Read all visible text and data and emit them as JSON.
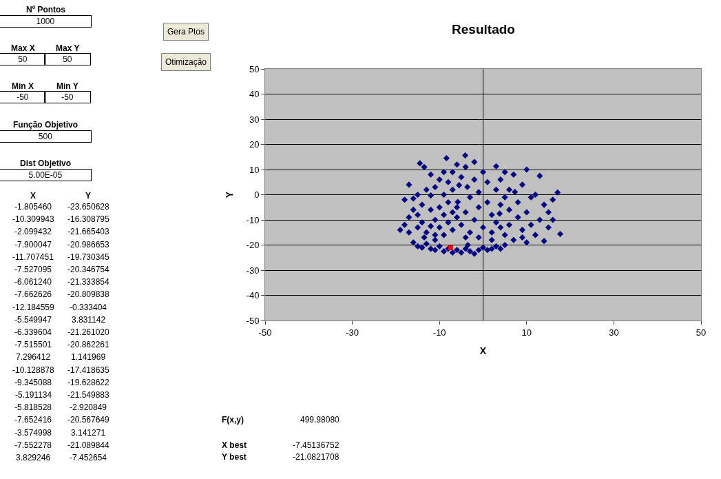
{
  "chart_data": {
    "type": "scatter",
    "title": "Resultado",
    "xlabel": "X",
    "ylabel": "Y",
    "xlim": [
      -50,
      50
    ],
    "xticks": [
      -50,
      -30,
      -10,
      10,
      30,
      50
    ],
    "ylim": [
      -50,
      50
    ],
    "yticks": [
      -50,
      -40,
      -30,
      -20,
      -10,
      0,
      10,
      20,
      30,
      40,
      50
    ],
    "grid": "y",
    "legend": false,
    "marker": "diamond",
    "series": [
      {
        "color": "#000080",
        "x": [
          -16,
          -15,
          -14,
          -13,
          -12,
          -11,
          -10,
          -9,
          -8,
          -6,
          -5,
          -4,
          -3,
          -2,
          -1,
          0,
          1,
          2,
          3,
          4,
          5,
          -7,
          -3.5,
          -11,
          -13.5,
          -19,
          -18,
          -17,
          -18,
          -16,
          -17,
          -15,
          -16,
          -15,
          -14,
          -14,
          -13,
          -13,
          -12,
          -12,
          -11,
          -11,
          -10,
          -10,
          -14.5,
          -13.5,
          -12,
          -17,
          -15,
          -11,
          -12,
          -9,
          -9,
          -9,
          -8.4,
          -8,
          -8,
          -8,
          -7,
          -7,
          -7,
          -6,
          -6,
          -5.5,
          -5.8,
          -5,
          -5,
          -4.1,
          -4,
          -4,
          -3.6,
          -3,
          -3,
          -2,
          -2,
          -2,
          -1,
          -1,
          0,
          0,
          -6,
          -9,
          -4,
          -1,
          -10,
          -7,
          1,
          1,
          2,
          2,
          3,
          3,
          3,
          4,
          4,
          5,
          5,
          5,
          6,
          6,
          7.3,
          7,
          7,
          8,
          8,
          9,
          9,
          9,
          10,
          10,
          11,
          11,
          12,
          12,
          13,
          13,
          14,
          14,
          15,
          15,
          16,
          16,
          17.1,
          17.7,
          3.8,
          6,
          10,
          2,
          4
        ],
        "values": [
          -19,
          -20.5,
          -21,
          -19.5,
          -21.5,
          -22,
          -20.5,
          -22.5,
          -21.5,
          -22,
          -23,
          -21.5,
          -22.5,
          -23.5,
          -22,
          -21,
          -22,
          -21.5,
          -20.5,
          -21.5,
          -20,
          -23,
          -20,
          -18,
          -17,
          -14,
          -12,
          -9,
          -2,
          -1.5,
          -15,
          -13,
          -6,
          -8,
          -4,
          -11,
          -15,
          2,
          -6,
          -0.3,
          -10,
          3,
          -13,
          6,
          12.5,
          11,
          8,
          4,
          0,
          -16,
          -12.5,
          -8,
          0,
          9,
          14.5,
          5,
          -3,
          -11,
          -14,
          2,
          9,
          -5,
          -9,
          3.8,
          -2.9,
          7,
          -12,
          15.6,
          11,
          -7,
          3.1,
          -1,
          -15,
          -10,
          6,
          13,
          1,
          -5,
          -13,
          9,
          12,
          -16,
          -17,
          -17,
          -5,
          -7,
          -3,
          5,
          -8,
          -15,
          11.3,
          2,
          -11,
          -4,
          6,
          -16,
          -1,
          9,
          -6,
          -12,
          1.1,
          -18,
          8,
          -9,
          -3,
          -14,
          4,
          -17,
          -7,
          10,
          -1,
          -12,
          -16,
          0,
          7.5,
          -10,
          -18.4,
          -4,
          -7,
          -13,
          -2,
          -10,
          0.9,
          -15.6,
          -7.5,
          2,
          -19,
          -18,
          -13
        ]
      },
      {
        "color": "#ff0000",
        "x": [
          -7.45136752
        ],
        "values": [
          -21.0821708
        ],
        "marker": "square"
      }
    ],
    "annotations": [
      "Nº Pontos",
      "1000",
      "Max X",
      "Max Y",
      "50",
      "50",
      "Min X",
      "Min Y",
      "-50",
      "-50",
      "Função Objetivo",
      "500",
      "Dist Objetivo",
      "5.00E-05",
      "Gera Ptos",
      "Otimização",
      "F(x,y)",
      "499.98080",
      "X best",
      "-7.45136752",
      "Y best",
      "-21.0821708",
      "X",
      "Y",
      "-1.805460",
      "-23.650628",
      "-10.309943",
      "-16.308795",
      "-2.099432",
      "-21.665403",
      "-7.900047",
      "-20.986653",
      "-11.707451",
      "-19.730345",
      "-7.527095",
      "-20.346754",
      "-6.061240",
      "-21.333854",
      "-7.662626",
      "-20.809838",
      "-12.184559",
      "-0.333404",
      "-5.549947",
      "3.831142",
      "-6.339604",
      "-21.261020",
      "-7.515501",
      "-20.862261",
      "7.296412",
      "1.141969",
      "-10.128878",
      "-17.418635",
      "-9.345088",
      "-19.628622",
      "-5.191134",
      "-21.549883",
      "-5.818528",
      "-2.920849",
      "-7.652416",
      "-20.567649",
      "-3.574998",
      "3.141271",
      "-7.552278",
      "-21.089844",
      "3.829246",
      "-7.452654"
    ]
  }
}
